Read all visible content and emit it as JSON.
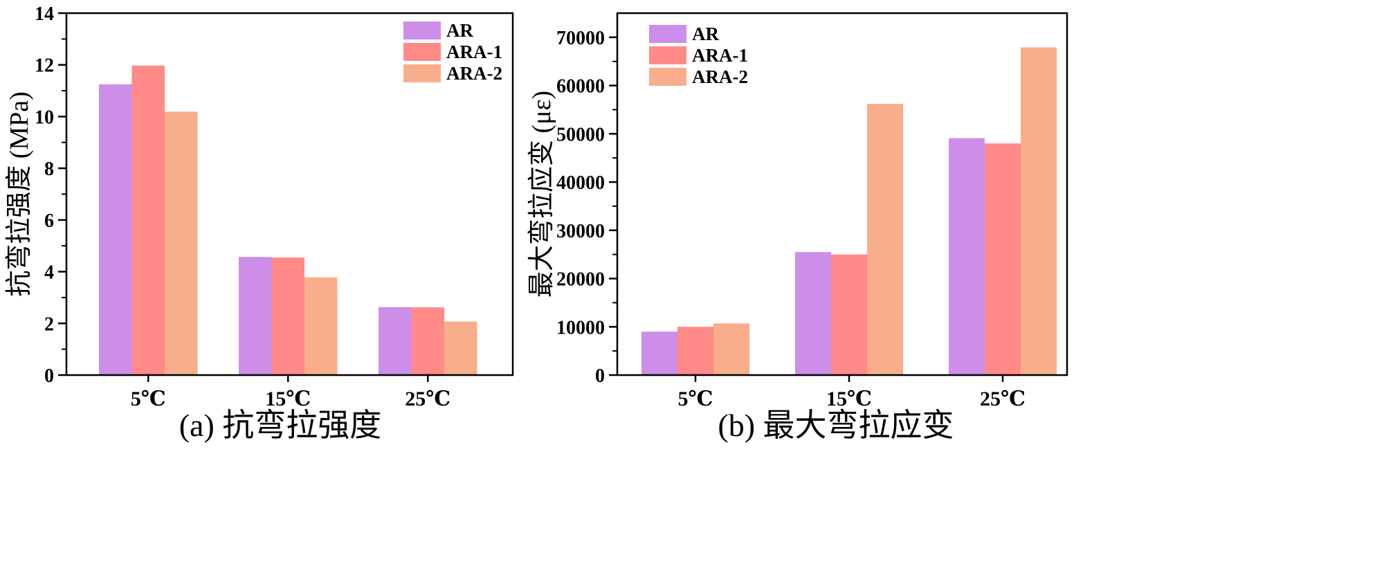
{
  "chart_data": [
    {
      "type": "bar",
      "panel": "a",
      "caption": "(a)  抗弯拉强度",
      "ylabel": "抗弯拉强度 (MPa)",
      "xlabel": "",
      "categories": [
        "5℃",
        "15℃",
        "25℃"
      ],
      "ylim": [
        0,
        14
      ],
      "yticks": [
        0,
        2,
        4,
        6,
        8,
        10,
        12,
        14
      ],
      "legend_position": "top-right",
      "series": [
        {
          "name": "AR",
          "color": "#cc8ee8",
          "values": [
            11.25,
            4.57,
            2.63
          ]
        },
        {
          "name": "ARA-1",
          "color": "#ff8a87",
          "values": [
            11.97,
            4.55,
            2.62
          ]
        },
        {
          "name": "ARA-2",
          "color": "#f8ad8b",
          "values": [
            10.19,
            3.78,
            2.07
          ]
        }
      ]
    },
    {
      "type": "bar",
      "panel": "b",
      "caption": "(b)  最大弯拉应变",
      "ylabel": "最大弯拉应变 (με)",
      "xlabel": "",
      "categories": [
        "5℃",
        "15℃",
        "25℃"
      ],
      "ylim": [
        0,
        75000
      ],
      "yticks": [
        0,
        10000,
        20000,
        30000,
        40000,
        50000,
        60000,
        70000
      ],
      "legend_position": "top-left",
      "series": [
        {
          "name": "AR",
          "color": "#cc8ee8",
          "values": [
            9000,
            25500,
            49100
          ]
        },
        {
          "name": "ARA-1",
          "color": "#ff8a87",
          "values": [
            10000,
            25000,
            48000
          ]
        },
        {
          "name": "ARA-2",
          "color": "#f8ad8b",
          "values": [
            10700,
            56200,
            67900
          ]
        }
      ]
    }
  ]
}
